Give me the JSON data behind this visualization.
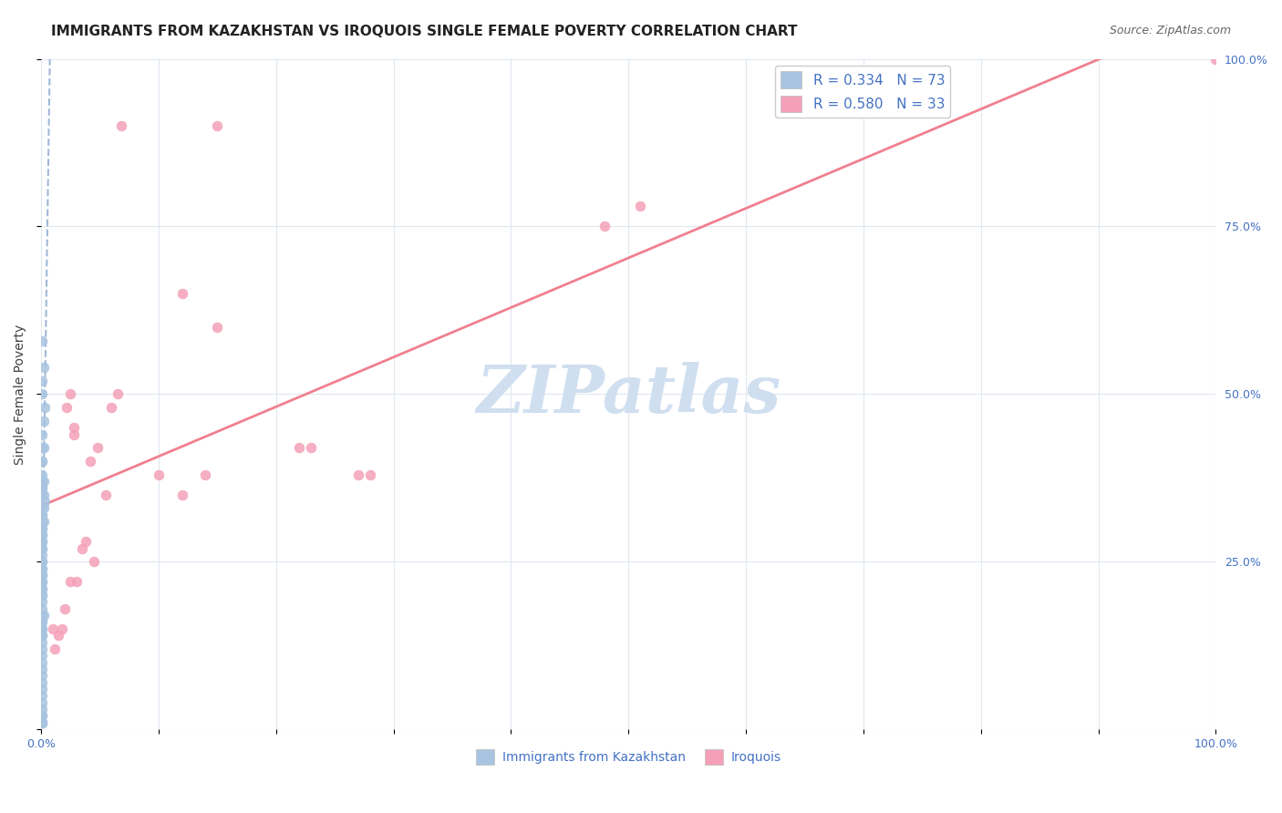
{
  "title": "IMMIGRANTS FROM KAZAKHSTAN VS IROQUOIS SINGLE FEMALE POVERTY CORRELATION CHART",
  "source": "Source: ZipAtlas.com",
  "xlabel_ticks": [
    "0.0%",
    "100.0%"
  ],
  "ylabel_label": "Single Female Poverty",
  "right_yticks": [
    "100.0%",
    "75.0%",
    "50.0%",
    "25.0%"
  ],
  "legend_line1": "R = 0.334   N = 73",
  "legend_line2": "R = 0.580   N = 33",
  "r_blue": 0.334,
  "n_blue": 73,
  "r_pink": 0.58,
  "n_pink": 33,
  "color_blue": "#a8c4e0",
  "color_pink": "#f4a0b8",
  "color_blue_line": "#a0b8d8",
  "color_pink_line": "#f08090",
  "color_blue_text": "#4472c4",
  "color_pink_text": "#e060a0",
  "watermark_text": "ZIPatlas",
  "watermark_color": "#d0dff0",
  "blue_scatter_x": [
    0.001,
    0.002,
    0.001,
    0.001,
    0.003,
    0.002,
    0.001,
    0.001,
    0.002,
    0.001,
    0.001,
    0.001,
    0.002,
    0.001,
    0.001,
    0.001,
    0.002,
    0.001,
    0.003,
    0.002,
    0.001,
    0.001,
    0.001,
    0.002,
    0.001,
    0.001,
    0.001,
    0.001,
    0.001,
    0.001,
    0.001,
    0.001,
    0.001,
    0.001,
    0.001,
    0.001,
    0.001,
    0.001,
    0.001,
    0.001,
    0.001,
    0.001,
    0.001,
    0.001,
    0.001,
    0.001,
    0.001,
    0.001,
    0.002,
    0.001,
    0.001,
    0.001,
    0.001,
    0.001,
    0.001,
    0.001,
    0.001,
    0.001,
    0.001,
    0.001,
    0.001,
    0.001,
    0.001,
    0.001,
    0.001,
    0.001,
    0.001,
    0.001,
    0.001,
    0.001,
    0.001,
    0.001,
    0.001
  ],
  "blue_scatter_y": [
    0.58,
    0.54,
    0.52,
    0.5,
    0.48,
    0.46,
    0.44,
    0.42,
    0.42,
    0.4,
    0.4,
    0.38,
    0.37,
    0.37,
    0.36,
    0.36,
    0.35,
    0.35,
    0.34,
    0.33,
    0.33,
    0.32,
    0.32,
    0.31,
    0.31,
    0.3,
    0.3,
    0.29,
    0.29,
    0.28,
    0.28,
    0.27,
    0.27,
    0.26,
    0.25,
    0.25,
    0.24,
    0.24,
    0.23,
    0.23,
    0.22,
    0.22,
    0.21,
    0.21,
    0.2,
    0.2,
    0.19,
    0.18,
    0.17,
    0.17,
    0.16,
    0.16,
    0.15,
    0.15,
    0.14,
    0.14,
    0.13,
    0.12,
    0.11,
    0.1,
    0.09,
    0.08,
    0.07,
    0.06,
    0.05,
    0.04,
    0.03,
    0.02,
    0.02,
    0.01,
    0.01,
    0.01,
    0.01
  ],
  "pink_scatter_x": [
    0.025,
    0.022,
    0.065,
    0.06,
    0.055,
    0.048,
    0.042,
    0.045,
    0.038,
    0.035,
    0.03,
    0.028,
    0.028,
    0.025,
    0.068,
    0.15,
    0.15,
    0.12,
    0.14,
    0.12,
    0.1,
    0.23,
    0.22,
    0.28,
    0.27,
    0.51,
    0.48,
    0.01,
    0.012,
    0.015,
    0.018,
    0.02,
    1.0
  ],
  "pink_scatter_y": [
    0.5,
    0.48,
    0.5,
    0.48,
    0.35,
    0.42,
    0.4,
    0.25,
    0.28,
    0.27,
    0.22,
    0.44,
    0.45,
    0.22,
    0.9,
    0.9,
    0.6,
    0.65,
    0.38,
    0.35,
    0.38,
    0.42,
    0.42,
    0.38,
    0.38,
    0.78,
    0.75,
    0.15,
    0.12,
    0.14,
    0.15,
    0.18,
    1.0
  ],
  "xlim": [
    0.0,
    1.0
  ],
  "ylim": [
    0.0,
    1.0
  ],
  "grid_color": "#e0e8f0",
  "background_color": "#ffffff",
  "title_fontsize": 11,
  "source_fontsize": 9
}
